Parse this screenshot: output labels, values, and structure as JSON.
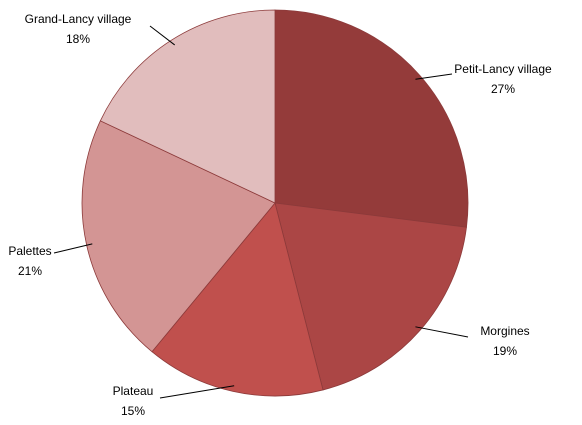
{
  "chart_data": {
    "type": "pie",
    "categories": [
      "Petit-Lancy village",
      "Morgines",
      "Plateau",
      "Palettes",
      "Grand-Lancy village"
    ],
    "values": [
      27,
      19,
      15,
      21,
      18
    ],
    "value_labels": [
      "27%",
      "19%",
      "15%",
      "21%",
      "18%"
    ],
    "colors": [
      "#943b3a",
      "#ab4645",
      "#c0504d",
      "#d39594",
      "#e1bdbd"
    ]
  }
}
